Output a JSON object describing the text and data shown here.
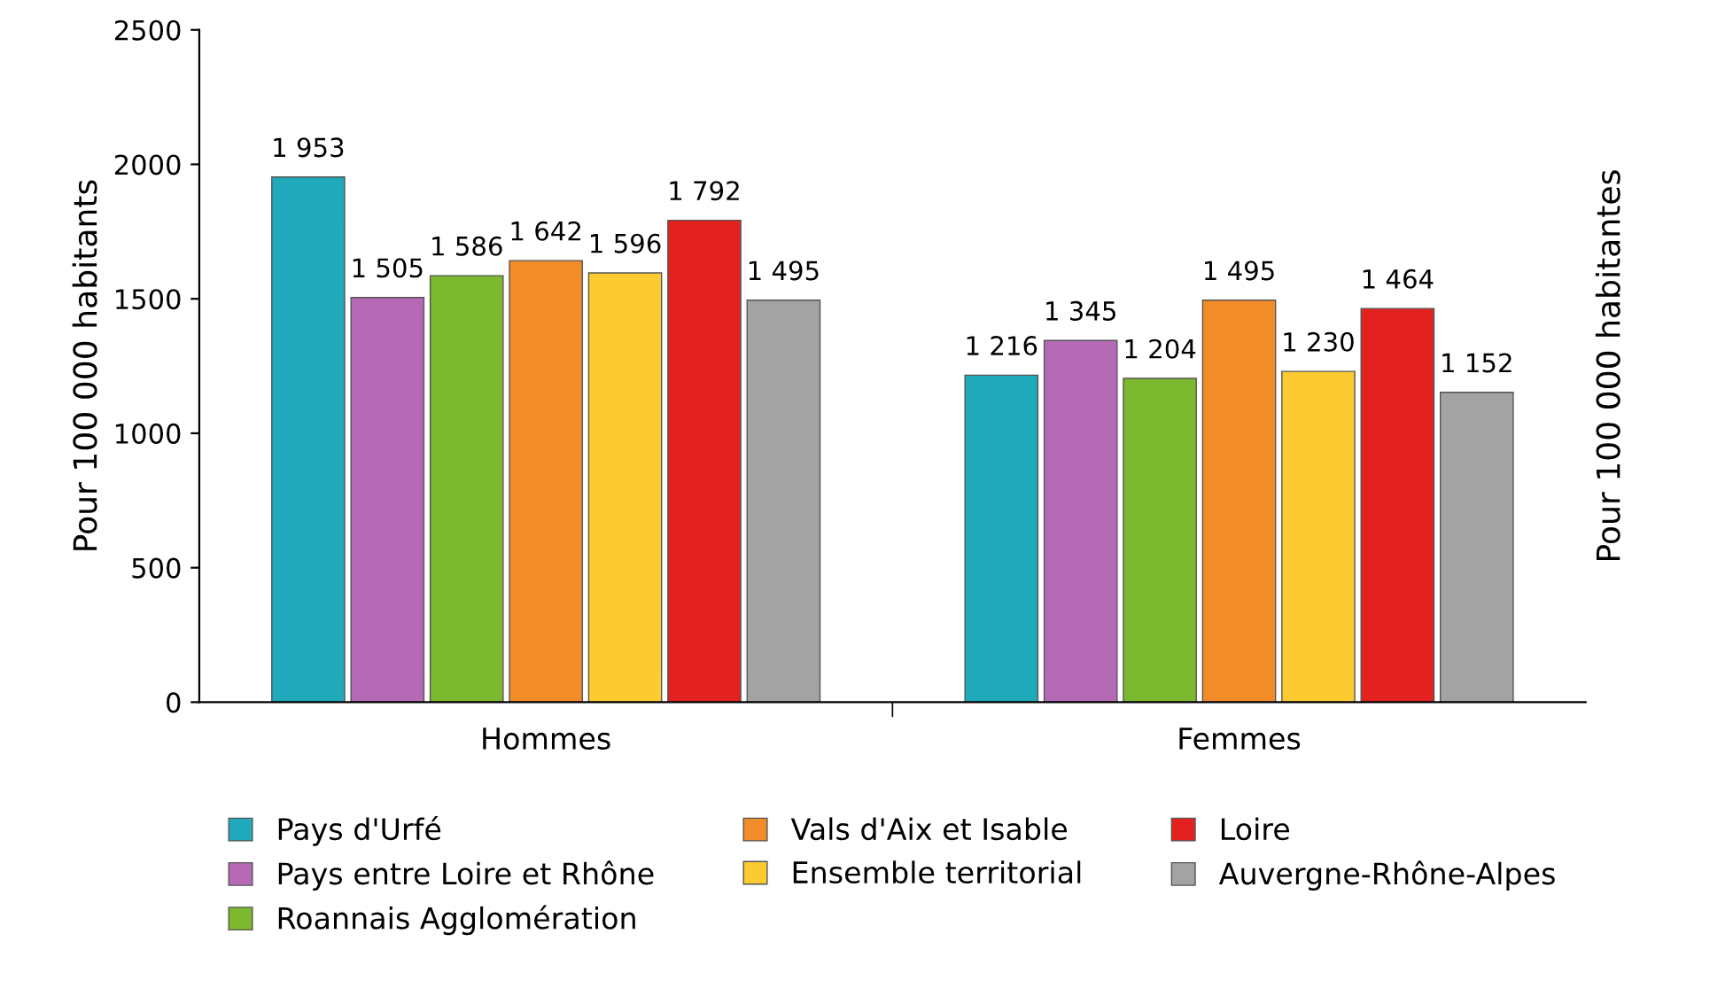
{
  "chart_data": {
    "type": "bar",
    "ylabel": "Pour 100 000 habitants",
    "y2label": "Pour 100 000 habitantes",
    "categories": [
      "Hommes",
      "Femmes"
    ],
    "series": [
      {
        "name": "Pays d'Urfé",
        "color": "#1fa9ba",
        "values": [
          1953,
          1216
        ],
        "value_labels": [
          "1 953",
          "1 216"
        ]
      },
      {
        "name": "Pays entre Loire et Rhône",
        "color": "#b66ab6",
        "values": [
          1505,
          1345
        ],
        "value_labels": [
          "1 505",
          "1 345"
        ]
      },
      {
        "name": "Roannais Agglomération",
        "color": "#7cb92e",
        "values": [
          1586,
          1204
        ],
        "value_labels": [
          "1 586",
          "1 204"
        ]
      },
      {
        "name": "Vals d'Aix et Isable",
        "color": "#f28c28",
        "values": [
          1642,
          1495
        ],
        "value_labels": [
          "1 642",
          "1 495"
        ]
      },
      {
        "name": "Ensemble territorial",
        "color": "#fbcb2f",
        "values": [
          1596,
          1230
        ],
        "value_labels": [
          "1 596",
          "1 230"
        ]
      },
      {
        "name": "Loire",
        "color": "#e3211f",
        "values": [
          1792,
          1464
        ],
        "value_labels": [
          "1 792",
          "1 464"
        ]
      },
      {
        "name": "Auvergne-Rhône-Alpes",
        "color": "#a3a3a3",
        "values": [
          1495,
          1152
        ],
        "value_labels": [
          "1 495",
          "1 152"
        ]
      }
    ],
    "ylim": [
      0,
      2500
    ],
    "yticks": [
      0,
      500,
      1000,
      1500,
      2000,
      2500
    ],
    "grid": false,
    "legend": "bottom"
  }
}
